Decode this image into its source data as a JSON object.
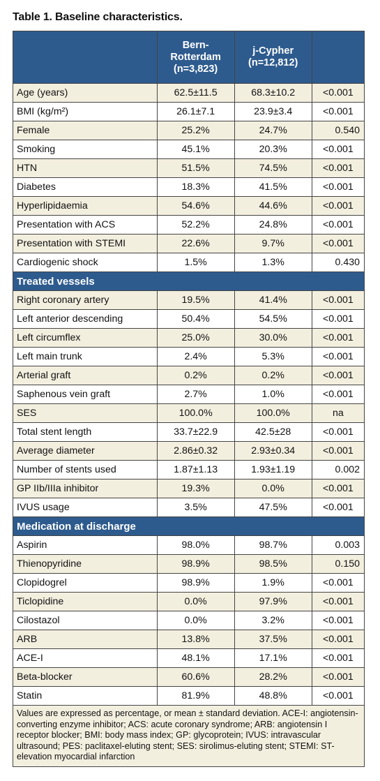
{
  "title": "Table 1. Baseline characteristics.",
  "columns": {
    "col1": [
      "Bern-",
      "Rotterdam",
      "(n=3,823)"
    ],
    "col2": [
      "j-Cypher",
      "(n=12,812)"
    ]
  },
  "rows_baseline": [
    {
      "label": "Age (years)",
      "a": "62.5±11.5",
      "b": "68.3±10.2",
      "p": "<0.001"
    },
    {
      "label": "BMI (kg/m²)",
      "a": "26.1±7.1",
      "b": "23.9±3.4",
      "p": "<0.001"
    },
    {
      "label": "Female",
      "a": "25.2%",
      "b": "24.7%",
      "p": "0.540"
    },
    {
      "label": "Smoking",
      "a": "45.1%",
      "b": "20.3%",
      "p": "<0.001"
    },
    {
      "label": "HTN",
      "a": "51.5%",
      "b": "74.5%",
      "p": "<0.001"
    },
    {
      "label": "Diabetes",
      "a": "18.3%",
      "b": "41.5%",
      "p": "<0.001"
    },
    {
      "label": "Hyperlipidaemia",
      "a": "54.6%",
      "b": "44.6%",
      "p": "<0.001"
    },
    {
      "label": "Presentation with ACS",
      "a": "52.2%",
      "b": "24.8%",
      "p": "<0.001"
    },
    {
      "label": "Presentation with STEMI",
      "a": "22.6%",
      "b": "9.7%",
      "p": "<0.001"
    },
    {
      "label": "Cardiogenic shock",
      "a": "1.5%",
      "b": "1.3%",
      "p": "0.430"
    }
  ],
  "section_vessels": "Treated vessels",
  "rows_vessels": [
    {
      "label": "Right coronary artery",
      "a": "19.5%",
      "b": "41.4%",
      "p": "<0.001"
    },
    {
      "label": "Left anterior descending",
      "a": "50.4%",
      "b": "54.5%",
      "p": "<0.001"
    },
    {
      "label": "Left circumflex",
      "a": "25.0%",
      "b": "30.0%",
      "p": "<0.001"
    },
    {
      "label": "Left main trunk",
      "a": "2.4%",
      "b": "5.3%",
      "p": "<0.001"
    },
    {
      "label": "Arterial graft",
      "a": "0.2%",
      "b": "0.2%",
      "p": "<0.001"
    },
    {
      "label": "Saphenous vein graft",
      "a": "2.7%",
      "b": "1.0%",
      "p": "<0.001"
    },
    {
      "label": "SES",
      "a": "100.0%",
      "b": "100.0%",
      "p": "na"
    },
    {
      "label": "Total stent length",
      "a": "33.7±22.9",
      "b": "42.5±28",
      "p": "<0.001"
    },
    {
      "label": "Average diameter",
      "a": "2.86±0.32",
      "b": "2.93±0.34",
      "p": "<0.001"
    },
    {
      "label": "Number of stents used",
      "a": "1.87±1.13",
      "b": "1.93±1.19",
      "p": "0.002"
    },
    {
      "label": "GP IIb/IIIa inhibitor",
      "a": "19.3%",
      "b": "0.0%",
      "p": "<0.001"
    },
    {
      "label": "IVUS usage",
      "a": "3.5%",
      "b": "47.5%",
      "p": "<0.001"
    }
  ],
  "section_medication": "Medication at discharge",
  "rows_medication": [
    {
      "label": "Aspirin",
      "a": "98.0%",
      "b": "98.7%",
      "p": "0.003"
    },
    {
      "label": "Thienopyridine",
      "a": "98.9%",
      "b": "98.5%",
      "p": "0.150"
    },
    {
      "label": "Clopidogrel",
      "a": "98.9%",
      "b": "1.9%",
      "p": "<0.001"
    },
    {
      "label": "Ticlopidine",
      "a": "0.0%",
      "b": "97.9%",
      "p": "<0.001"
    },
    {
      "label": "Cilostazol",
      "a": "0.0%",
      "b": "3.2%",
      "p": "<0.001"
    },
    {
      "label": "ARB",
      "a": "13.8%",
      "b": "37.5%",
      "p": "<0.001"
    },
    {
      "label": "ACE-I",
      "a": "48.1%",
      "b": "17.1%",
      "p": "<0.001"
    },
    {
      "label": "Beta-blocker",
      "a": "60.6%",
      "b": "28.2%",
      "p": "<0.001"
    },
    {
      "label": "Statin",
      "a": "81.9%",
      "b": "48.8%",
      "p": "<0.001"
    }
  ],
  "footnote": "Values are expressed as percentage, or mean ± standard deviation. ACE-I: angiotensin-converting enzyme inhibitor; ACS: acute coronary syndrome; ARB: angiotensin I receptor blocker; BMI: body mass index; GP: glycoprotein; IVUS: intravascular ultrasound; PES: paclitaxel-eluting stent; SES: sirolimus-eluting stent; STEMI: ST-elevation myocardial infarction",
  "colors": {
    "header": "#2e5b8e",
    "row_alt": "#f3efdf"
  }
}
